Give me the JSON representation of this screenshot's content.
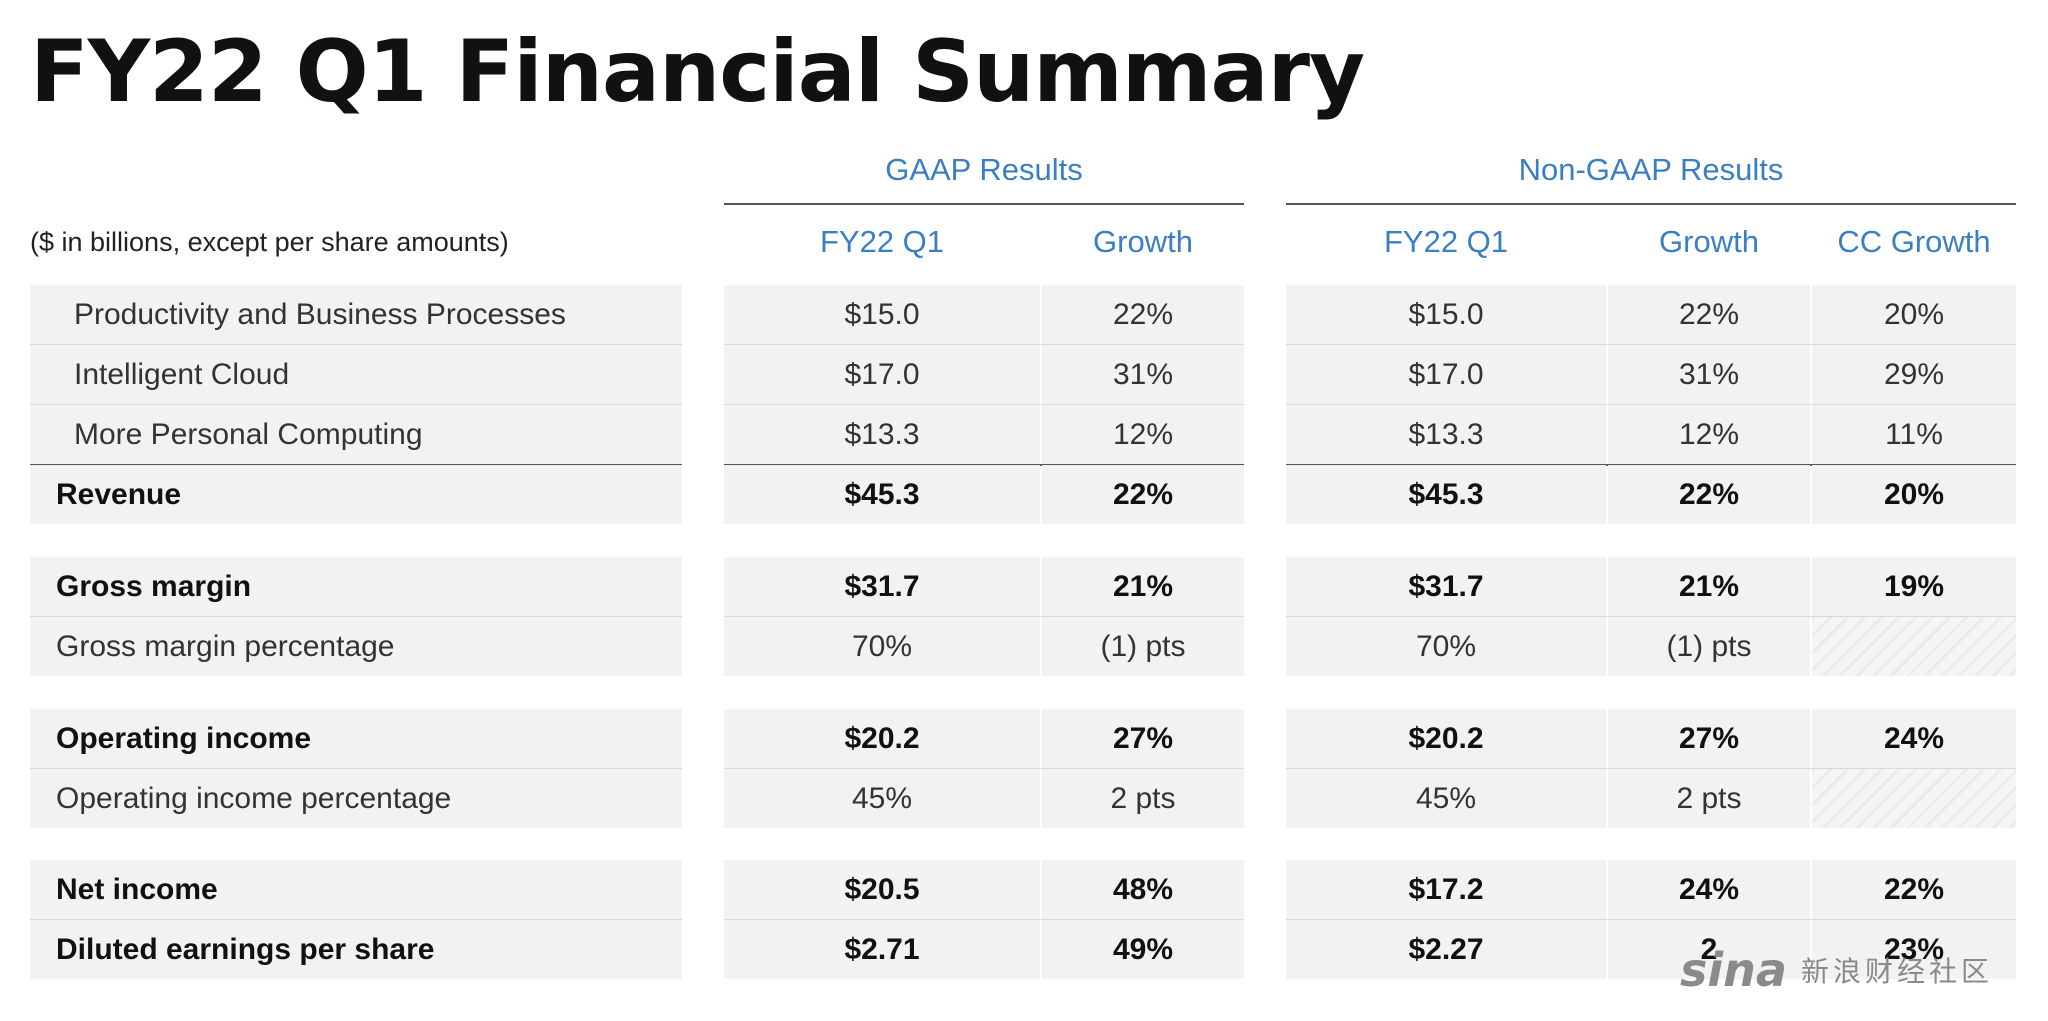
{
  "title": "FY22 Q1 Financial Summary",
  "subtitle": "($ in billions, except per share amounts)",
  "groups": {
    "gaap": "GAAP Results",
    "nongaap": "Non-GAAP Results"
  },
  "columns": {
    "gaap_q": "FY22 Q1",
    "gaap_growth": "Growth",
    "ng_q": "FY22 Q1",
    "ng_growth": "Growth",
    "ng_cc": "CC Growth"
  },
  "rows": [
    {
      "label": "Productivity and Business Processes",
      "gaap_q": "$15.0",
      "gaap_growth": "22%",
      "ng_q": "$15.0",
      "ng_growth": "22%",
      "ng_cc": "20%"
    },
    {
      "label": "Intelligent Cloud",
      "gaap_q": "$17.0",
      "gaap_growth": "31%",
      "ng_q": "$17.0",
      "ng_growth": "31%",
      "ng_cc": "29%"
    },
    {
      "label": "More Personal Computing",
      "gaap_q": "$13.3",
      "gaap_growth": "12%",
      "ng_q": "$13.3",
      "ng_growth": "12%",
      "ng_cc": "11%"
    },
    {
      "label": "Revenue",
      "gaap_q": "$45.3",
      "gaap_growth": "22%",
      "ng_q": "$45.3",
      "ng_growth": "22%",
      "ng_cc": "20%"
    },
    {
      "label": "Gross margin",
      "gaap_q": "$31.7",
      "gaap_growth": "21%",
      "ng_q": "$31.7",
      "ng_growth": "21%",
      "ng_cc": "19%"
    },
    {
      "label": "Gross margin percentage",
      "gaap_q": "70%",
      "gaap_growth": "(1) pts",
      "ng_q": "70%",
      "ng_growth": "(1) pts",
      "ng_cc": ""
    },
    {
      "label": "Operating income",
      "gaap_q": "$20.2",
      "gaap_growth": "27%",
      "ng_q": "$20.2",
      "ng_growth": "27%",
      "ng_cc": "24%"
    },
    {
      "label": "Operating income percentage",
      "gaap_q": "45%",
      "gaap_growth": "2 pts",
      "ng_q": "45%",
      "ng_growth": "2 pts",
      "ng_cc": ""
    },
    {
      "label": "Net income",
      "gaap_q": "$20.5",
      "gaap_growth": "48%",
      "ng_q": "$17.2",
      "ng_growth": "24%",
      "ng_cc": "22%"
    },
    {
      "label": "Diluted earnings per share",
      "gaap_q": "$2.71",
      "gaap_growth": "49%",
      "ng_q": "$2.27",
      "ng_growth": "2",
      "ng_cc": "23%"
    }
  ],
  "watermark": {
    "logo": "sina",
    "text": "新浪财经社区"
  }
}
